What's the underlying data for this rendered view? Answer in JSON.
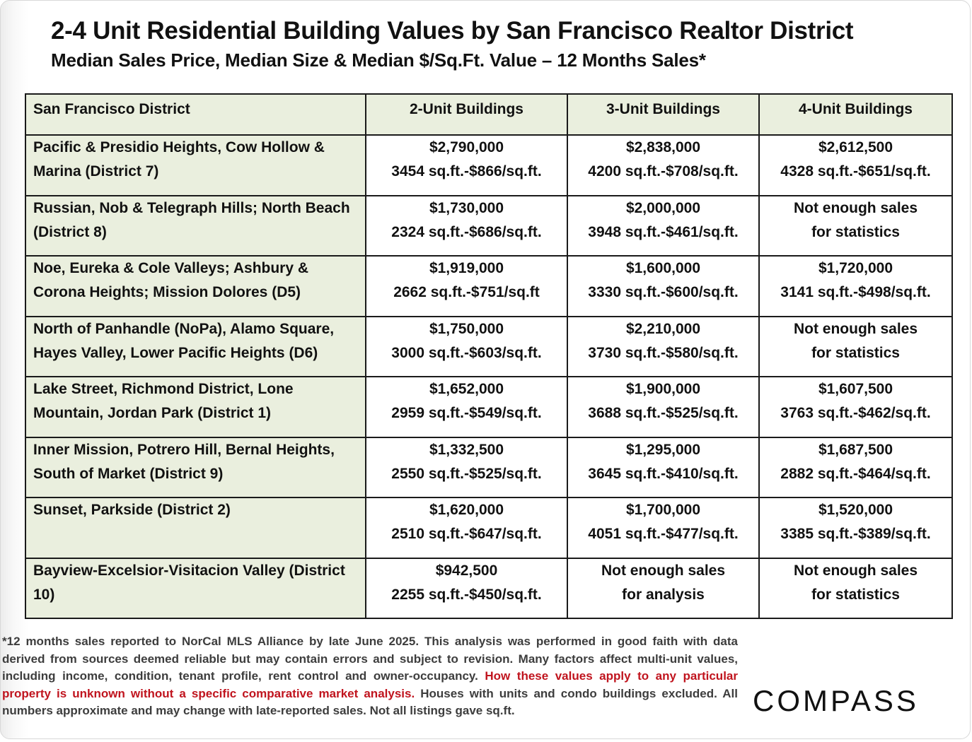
{
  "title": "2-4 Unit Residential Building Values by San Francisco Realtor District",
  "subtitle": "Median Sales Price, Median Size & Median $/Sq.Ft. Value – 12 Months Sales*",
  "table": {
    "headers": [
      "San Francisco District",
      "2-Unit Buildings",
      "3-Unit Buildings",
      "4-Unit Buildings"
    ],
    "rows": [
      {
        "district": "Pacific & Presidio Heights, Cow Hollow & Marina (District 7)",
        "cells": [
          [
            "$2,790,000",
            "3454 sq.ft.-$866/sq.ft."
          ],
          [
            "$2,838,000",
            "4200 sq.ft.-$708/sq.ft."
          ],
          [
            "$2,612,500",
            "4328 sq.ft.-$651/sq.ft."
          ]
        ]
      },
      {
        "district": "Russian, Nob & Telegraph Hills; North Beach (District 8)",
        "cells": [
          [
            "$1,730,000",
            "2324 sq.ft.-$686/sq.ft."
          ],
          [
            "$2,000,000",
            "3948 sq.ft.-$461/sq.ft."
          ],
          [
            "Not enough sales",
            "for statistics"
          ]
        ]
      },
      {
        "district": "Noe, Eureka & Cole Valleys; Ashbury & Corona Heights; Mission Dolores (D5)",
        "cells": [
          [
            "$1,919,000",
            "2662 sq.ft.-$751/sq.ft"
          ],
          [
            "$1,600,000",
            "3330 sq.ft.-$600/sq.ft."
          ],
          [
            "$1,720,000",
            "3141 sq.ft.-$498/sq.ft."
          ]
        ]
      },
      {
        "district": "North of Panhandle (NoPa), Alamo Square, Hayes Valley, Lower Pacific Heights (D6)",
        "cells": [
          [
            "$1,750,000",
            "3000 sq.ft.-$603/sq.ft."
          ],
          [
            "$2,210,000",
            "3730 sq.ft.-$580/sq.ft."
          ],
          [
            "Not enough sales",
            "for statistics"
          ]
        ]
      },
      {
        "district": "Lake Street, Richmond District, Lone Mountain, Jordan Park (District 1)",
        "cells": [
          [
            "$1,652,000",
            "2959 sq.ft.-$549/sq.ft."
          ],
          [
            "$1,900,000",
            "3688 sq.ft.-$525/sq.ft."
          ],
          [
            "$1,607,500",
            "3763 sq.ft.-$462/sq.ft."
          ]
        ]
      },
      {
        "district": "Inner Mission, Potrero Hill, Bernal Heights, South of Market (District 9)",
        "cells": [
          [
            "$1,332,500",
            "2550 sq.ft.-$525/sq.ft."
          ],
          [
            "$1,295,000",
            "3645 sq.ft.-$410/sq.ft."
          ],
          [
            "$1,687,500",
            "2882 sq.ft.-$464/sq.ft."
          ]
        ]
      },
      {
        "district": "Sunset, Parkside (District 2)",
        "cells": [
          [
            "$1,620,000",
            "2510 sq.ft.-$647/sq.ft."
          ],
          [
            "$1,700,000",
            "4051 sq.ft.-$477/sq.ft."
          ],
          [
            "$1,520,000",
            "3385 sq.ft.-$389/sq.ft."
          ]
        ]
      },
      {
        "district": "Bayview-Excelsior-Visitacion Valley (District 10)",
        "cells": [
          [
            "$942,500",
            "2255 sq.ft.-$450/sq.ft."
          ],
          [
            "Not enough sales",
            "for analysis"
          ],
          [
            "Not enough sales",
            "for statistics"
          ]
        ]
      }
    ]
  },
  "footnote": {
    "part1": "*12 months sales reported to NorCal MLS Alliance by late June 2025. This analysis was performed in good faith with data derived from sources deemed reliable but may contain errors and subject to revision. Many factors affect multi-unit values, including income, condition, tenant profile, rent control and owner-occupancy. ",
    "warning": "How these values apply to any particular property is unknown without a specific comparative market analysis.",
    "part2": " Houses with units and condo buildings excluded. All numbers approximate and may change with late-reported sales. Not all listings gave sq.ft."
  },
  "logo": {
    "text": "COMPASS"
  },
  "colors": {
    "district_column_bg": "#eaefde",
    "header_bg": "#eaefde",
    "warning_text": "#c0141e",
    "footnote_text": "#3d3d3d"
  }
}
